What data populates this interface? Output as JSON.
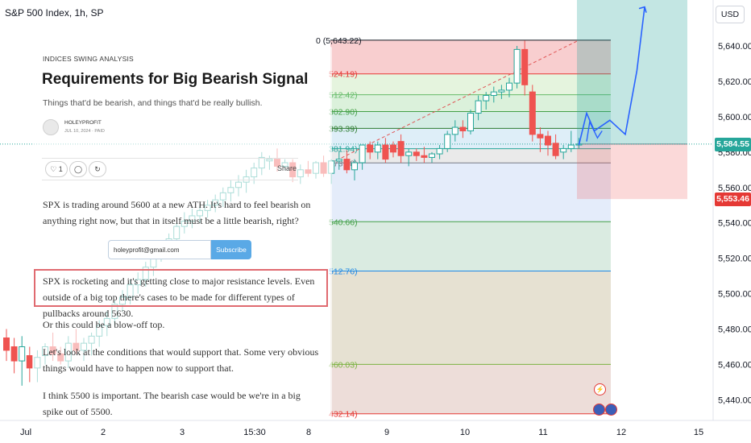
{
  "chart_data": {
    "type": "candlestick",
    "title": "S&P 500 Index, 1h, SP",
    "currency": "USD",
    "ylim": [
      5432,
      5650
    ],
    "y_ticks": [
      5440,
      5460,
      5480,
      5500,
      5520,
      5540,
      5560,
      5580,
      5600,
      5620,
      5640
    ],
    "y_tick_labels": [
      "5,440.00",
      "5,460.00",
      "5,480.00",
      "5,500.00",
      "5,520.00",
      "5,540.00",
      "5,560.00",
      "5,580.00",
      "5,600.00",
      "5,620.00",
      "5,640.00"
    ],
    "x_tick_labels": [
      {
        "label": "Jul",
        "x": 0
      },
      {
        "label": "2",
        "x": 9.6
      },
      {
        "label": "3",
        "x": 19.4
      },
      {
        "label": "15:30",
        "x": 28.4
      },
      {
        "label": "8",
        "x": 35.1
      },
      {
        "label": "9",
        "x": 44.8
      },
      {
        "label": "10",
        "x": 54.5
      },
      {
        "label": "11",
        "x": 64.2
      },
      {
        "label": "12",
        "x": 73.9
      },
      {
        "label": "15",
        "x": 83.5
      }
    ],
    "candles": [
      {
        "x": 0,
        "o": 5475,
        "h": 5480,
        "l": 5462,
        "c": 5468
      },
      {
        "x": 1,
        "o": 5470,
        "h": 5475,
        "l": 5455,
        "c": 5462
      },
      {
        "x": 2,
        "o": 5462,
        "h": 5476,
        "l": 5448,
        "c": 5470
      },
      {
        "x": 3,
        "o": 5465,
        "h": 5470,
        "l": 5450,
        "c": 5458
      },
      {
        "x": 4,
        "o": 5458,
        "h": 5468,
        "l": 5450,
        "c": 5464
      },
      {
        "x": 5,
        "o": 5465,
        "h": 5472,
        "l": 5460,
        "c": 5470
      },
      {
        "x": 6,
        "o": 5470,
        "h": 5478,
        "l": 5462,
        "c": 5466
      },
      {
        "x": 7,
        "o": 5466,
        "h": 5470,
        "l": 5460,
        "c": 5462
      },
      {
        "x": 8,
        "o": 5462,
        "h": 5476,
        "l": 5458,
        "c": 5472
      },
      {
        "x": 9,
        "o": 5472,
        "h": 5480,
        "l": 5466,
        "c": 5468
      },
      {
        "x": 10,
        "o": 5468,
        "h": 5475,
        "l": 5462,
        "c": 5472
      },
      {
        "x": 11,
        "o": 5472,
        "h": 5478,
        "l": 5465,
        "c": 5476
      },
      {
        "x": 12,
        "o": 5476,
        "h": 5485,
        "l": 5470,
        "c": 5482
      },
      {
        "x": 13,
        "o": 5482,
        "h": 5490,
        "l": 5476,
        "c": 5486
      },
      {
        "x": 14,
        "o": 5486,
        "h": 5496,
        "l": 5482,
        "c": 5494
      },
      {
        "x": 15,
        "o": 5494,
        "h": 5502,
        "l": 5490,
        "c": 5498
      },
      {
        "x": 16,
        "o": 5498,
        "h": 5508,
        "l": 5494,
        "c": 5505
      },
      {
        "x": 17,
        "o": 5505,
        "h": 5512,
        "l": 5500,
        "c": 5508
      },
      {
        "x": 18,
        "o": 5508,
        "h": 5518,
        "l": 5504,
        "c": 5515
      },
      {
        "x": 19,
        "o": 5515,
        "h": 5524,
        "l": 5510,
        "c": 5522
      },
      {
        "x": 20,
        "o": 5522,
        "h": 5530,
        "l": 5518,
        "c": 5526
      },
      {
        "x": 21,
        "o": 5526,
        "h": 5534,
        "l": 5522,
        "c": 5531
      },
      {
        "x": 22,
        "o": 5531,
        "h": 5540,
        "l": 5526,
        "c": 5538
      },
      {
        "x": 23,
        "o": 5538,
        "h": 5546,
        "l": 5534,
        "c": 5541
      },
      {
        "x": 24,
        "o": 5541,
        "h": 5548,
        "l": 5537,
        "c": 5544
      },
      {
        "x": 25,
        "o": 5544,
        "h": 5550,
        "l": 5540,
        "c": 5547
      },
      {
        "x": 26,
        "o": 5547,
        "h": 5553,
        "l": 5543,
        "c": 5550
      },
      {
        "x": 27,
        "o": 5550,
        "h": 5556,
        "l": 5546,
        "c": 5553
      },
      {
        "x": 28,
        "o": 5553,
        "h": 5560,
        "l": 5549,
        "c": 5557
      },
      {
        "x": 29,
        "o": 5557,
        "h": 5564,
        "l": 5552,
        "c": 5560
      },
      {
        "x": 30,
        "o": 5560,
        "h": 5567,
        "l": 5555,
        "c": 5563
      },
      {
        "x": 31,
        "o": 5563,
        "h": 5570,
        "l": 5557,
        "c": 5566
      },
      {
        "x": 32,
        "o": 5566,
        "h": 5574,
        "l": 5562,
        "c": 5571
      },
      {
        "x": 33,
        "o": 5571,
        "h": 5580,
        "l": 5567,
        "c": 5577
      },
      {
        "x": 34,
        "o": 5575,
        "h": 5578,
        "l": 5570,
        "c": 5576
      },
      {
        "x": 35,
        "o": 5576,
        "h": 5582,
        "l": 5569,
        "c": 5572
      },
      {
        "x": 36,
        "o": 5572,
        "h": 5576,
        "l": 5570,
        "c": 5574
      },
      {
        "x": 37,
        "o": 5574,
        "h": 5576,
        "l": 5563,
        "c": 5566
      },
      {
        "x": 38,
        "o": 5566,
        "h": 5573,
        "l": 5562,
        "c": 5570
      },
      {
        "x": 39,
        "o": 5570,
        "h": 5575,
        "l": 5566,
        "c": 5568
      },
      {
        "x": 40,
        "o": 5568,
        "h": 5575,
        "l": 5565,
        "c": 5574
      },
      {
        "x": 41,
        "o": 5574,
        "h": 5578,
        "l": 5566,
        "c": 5568
      },
      {
        "x": 42,
        "o": 5568,
        "h": 5576,
        "l": 5562,
        "c": 5575
      },
      {
        "x": 43,
        "o": 5575,
        "h": 5581,
        "l": 5570,
        "c": 5576
      },
      {
        "x": 44,
        "o": 5576,
        "h": 5581,
        "l": 5568,
        "c": 5570
      },
      {
        "x": 45,
        "o": 5570,
        "h": 5576,
        "l": 5564,
        "c": 5574
      },
      {
        "x": 46,
        "o": 5574,
        "h": 5582,
        "l": 5570,
        "c": 5584
      },
      {
        "x": 47,
        "o": 5584,
        "h": 5586,
        "l": 5576,
        "c": 5580
      },
      {
        "x": 48,
        "o": 5580,
        "h": 5586,
        "l": 5576,
        "c": 5584
      },
      {
        "x": 49,
        "o": 5584,
        "h": 5588,
        "l": 5574,
        "c": 5576
      },
      {
        "x": 50,
        "o": 5584,
        "h": 5586,
        "l": 5577,
        "c": 5580
      },
      {
        "x": 51,
        "o": 5586,
        "h": 5590,
        "l": 5574,
        "c": 5578
      },
      {
        "x": 52,
        "o": 5578,
        "h": 5582,
        "l": 5572,
        "c": 5580
      },
      {
        "x": 53,
        "o": 5580,
        "h": 5582,
        "l": 5575,
        "c": 5578
      },
      {
        "x": 54,
        "o": 5578,
        "h": 5583,
        "l": 5574,
        "c": 5577
      },
      {
        "x": 55,
        "o": 5577,
        "h": 5580,
        "l": 5574,
        "c": 5579
      },
      {
        "x": 56,
        "o": 5579,
        "h": 5584,
        "l": 5576,
        "c": 5582
      },
      {
        "x": 57,
        "o": 5582,
        "h": 5592,
        "l": 5580,
        "c": 5590
      },
      {
        "x": 58,
        "o": 5590,
        "h": 5598,
        "l": 5586,
        "c": 5594
      },
      {
        "x": 59,
        "o": 5594,
        "h": 5598,
        "l": 5588,
        "c": 5592
      },
      {
        "x": 60,
        "o": 5592,
        "h": 5604,
        "l": 5590,
        "c": 5602
      },
      {
        "x": 61,
        "o": 5602,
        "h": 5612,
        "l": 5598,
        "c": 5609
      },
      {
        "x": 62,
        "o": 5609,
        "h": 5614,
        "l": 5604,
        "c": 5612
      },
      {
        "x": 63,
        "o": 5612,
        "h": 5617,
        "l": 5608,
        "c": 5614
      },
      {
        "x": 64,
        "o": 5614,
        "h": 5618,
        "l": 5610,
        "c": 5615
      },
      {
        "x": 65,
        "o": 5615,
        "h": 5622,
        "l": 5611,
        "c": 5619
      },
      {
        "x": 66,
        "o": 5619,
        "h": 5640,
        "l": 5616,
        "c": 5638
      },
      {
        "x": 67,
        "o": 5638,
        "h": 5643,
        "l": 5612,
        "c": 5618
      },
      {
        "x": 68,
        "o": 5614,
        "h": 5618,
        "l": 5586,
        "c": 5590
      },
      {
        "x": 69,
        "o": 5590,
        "h": 5594,
        "l": 5580,
        "c": 5588
      },
      {
        "x": 70,
        "o": 5589,
        "h": 5592,
        "l": 5578,
        "c": 5584
      },
      {
        "x": 71,
        "o": 5585,
        "h": 5590,
        "l": 5576,
        "c": 5578
      },
      {
        "x": 72,
        "o": 5580,
        "h": 5584,
        "l": 5576,
        "c": 5582
      },
      {
        "x": 73,
        "o": 5582,
        "h": 5592,
        "l": 5580,
        "c": 5584
      },
      {
        "x": 74,
        "o": 5584,
        "h": 5588,
        "l": 5582,
        "c": 5584.55
      }
    ],
    "fib_levels": [
      {
        "label": "0 (5,643.22)",
        "value": 5643.22,
        "color": "#131722",
        "fill": "#f7c6c7"
      },
      {
        "label": "524.19)",
        "value": 5624.19,
        "color": "#e53935",
        "fill": "#f7c6c7"
      },
      {
        "label": "512.42)",
        "value": 5612.42,
        "color": "#66bb6a",
        "fill": "#e0f2d8"
      },
      {
        "label": "302.90)",
        "value": 5602.9,
        "color": "#43a047",
        "fill": "#d5efd5"
      },
      {
        "label": "393.39)",
        "value": 5593.39,
        "color": "#2e7d32",
        "fill": "#cdeae0"
      },
      {
        "label": "381.94)",
        "value": 5581.94,
        "color": "#26a69a",
        "fill": "#d8ebf7"
      },
      {
        "label": "373.88)",
        "value": 5573.88,
        "color": "#787b86",
        "fill": "#e6e6e6"
      },
      {
        "label": "540.66)",
        "value": 5540.66,
        "color": "#43a047",
        "fill": "#dfe9f9"
      },
      {
        "label": "512.76)",
        "value": 5512.76,
        "color": "#1e88e5",
        "fill": "#d3e7dc"
      },
      {
        "label": "460.03)",
        "value": 5460.03,
        "color": "#7cb342",
        "fill": "#e2dcca"
      },
      {
        "label": "432.14)",
        "value": 5432.14,
        "color": "#e53935",
        "fill": "#ead7d2"
      }
    ],
    "trendline": {
      "from": {
        "x": 42,
        "y": 5573.88
      },
      "to": {
        "x": 74,
        "y": 5643.22
      }
    },
    "position": {
      "entry": 5584.55,
      "target_top": 5670,
      "stop": 5553.46,
      "x_start": 74,
      "x_end": 88
    },
    "projection": [
      {
        "x": 74,
        "y": 5584
      },
      {
        "x": 75,
        "y": 5602
      },
      {
        "x": 76,
        "y": 5592
      },
      {
        "x": 78,
        "y": 5598
      },
      {
        "x": 80,
        "y": 5590
      },
      {
        "x": 81.5,
        "y": 5626
      },
      {
        "x": 82.5,
        "y": 5662
      }
    ],
    "projection_short": [
      {
        "x": 75,
        "y": 5586
      },
      {
        "x": 75.4,
        "y": 5597
      },
      {
        "x": 76.4,
        "y": 5588
      },
      {
        "x": 77,
        "y": 5592
      }
    ],
    "price_badges": [
      {
        "label": "5,584.55",
        "value": 5584.55,
        "color": "#26a69a"
      },
      {
        "label": "5,553.46",
        "value": 5553.46,
        "color": "#e53935"
      }
    ]
  },
  "article": {
    "kicker": "INDICES SWING ANALYSIS",
    "title": "Requirements for Big Bearish Signal",
    "subtitle": "Things that'd be bearish, and things that'd be really bullish.",
    "author": "HOLEYPROFIT",
    "meta": "JUL 10, 2024 · PAID",
    "like_count": "1",
    "share_label": "Share",
    "para1": "SPX is trading around 5600 at a new ATH. It's hard to feel bearish on anything right now, but that in itself must be a little bearish, right?",
    "email_value": "holeyprofit@gmail.com",
    "subscribe_label": "Subscribe",
    "para2": "SPX is rocketing and it's getting close to major resistance levels. Even outside of a big top there's cases to be made for different types of pullbacks around 5630.",
    "para3": "Or this could be a blow-off top.",
    "para4": "Let's look at the conditions that would support that. Some very obvious things would have to happen now to support that.",
    "para5": "I think 5500 is important. The bearish case would be we're in a big spike out of 5500."
  },
  "ui": {
    "usd_label": "USD"
  },
  "colors": {
    "up": "#26a69a",
    "down": "#ef5350",
    "projection": "#2962ff"
  }
}
